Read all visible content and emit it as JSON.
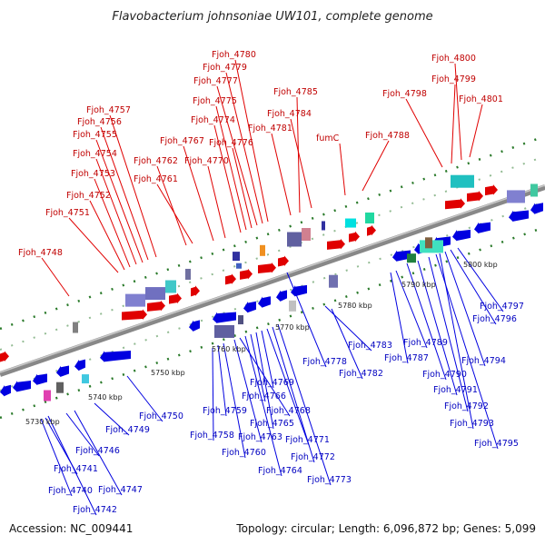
{
  "title": "Flavobacterium johnsoniae UW101, complete genome",
  "accession": "Accession: NC_009441",
  "summary": "Topology: circular; Length: 6,096,872 bp; Genes: 5,099",
  "colors": {
    "forward": "#e00000",
    "reverse": "#0000e0",
    "forward_label": "#c00000",
    "reverse_label": "#0000c0",
    "backbone": "#888888"
  },
  "kbp_ticks": [
    "5730 kbp",
    "5740 kbp",
    "5750 kbp",
    "5760 kbp",
    "5770 kbp",
    "5780 kbp",
    "5790 kbp",
    "5800 kbp"
  ],
  "forward_genes": [
    "Fjoh_4748",
    "Fjoh_4751",
    "Fjoh_4752",
    "Fjoh_4753",
    "Fjoh_4754",
    "Fjoh_4755",
    "Fjoh_4756",
    "Fjoh_4757",
    "Fjoh_4761",
    "Fjoh_4762",
    "Fjoh_4767",
    "Fjoh_4770",
    "Fjoh_4774",
    "Fjoh_4775",
    "Fjoh_4776",
    "Fjoh_4777",
    "Fjoh_4779",
    "Fjoh_4780",
    "Fjoh_4781",
    "Fjoh_4784",
    "Fjoh_4785",
    "fumC",
    "Fjoh_4788",
    "Fjoh_4798",
    "Fjoh_4799",
    "Fjoh_4800",
    "Fjoh_4801"
  ],
  "reverse_genes": [
    "Fjoh_4741",
    "Fjoh_4740",
    "Fjoh_4742",
    "Fjoh_4746",
    "Fjoh_4747",
    "Fjoh_4749",
    "Fjoh_4750",
    "Fjoh_4758",
    "Fjoh_4759",
    "Fjoh_4760",
    "Fjoh_4763",
    "Fjoh_4764",
    "Fjoh_4765",
    "Fjoh_4766",
    "Fjoh_4768",
    "Fjoh_4769",
    "Fjoh_4771",
    "Fjoh_4772",
    "Fjoh_4773",
    "Fjoh_4778",
    "Fjoh_4782",
    "Fjoh_4783",
    "Fjoh_4787",
    "Fjoh_4789",
    "Fjoh_4790",
    "Fjoh_4791",
    "Fjoh_4792",
    "Fjoh_4793",
    "Fjoh_4794",
    "Fjoh_4795",
    "Fjoh_4796",
    "Fjoh_4797"
  ]
}
